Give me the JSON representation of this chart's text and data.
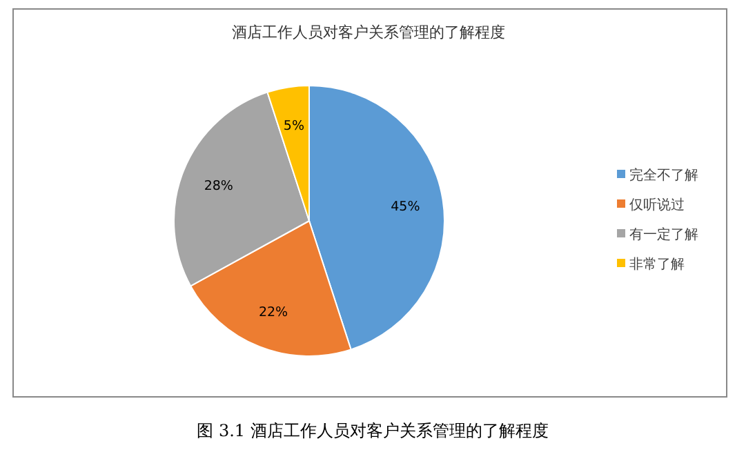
{
  "chart_data": {
    "type": "pie",
    "title": "酒店工作人员对客户关系管理的了解程度",
    "categories": [
      "完全不了解",
      "仅听说过",
      "有一定了解",
      "非常了解"
    ],
    "values": [
      45,
      22,
      28,
      5
    ],
    "value_labels": [
      "45%",
      "22%",
      "28%",
      "5%"
    ],
    "colors": [
      "#5b9bd5",
      "#ed7d31",
      "#a5a5a5",
      "#ffc000"
    ],
    "legend": "right",
    "annotations": [
      "图 3.1 酒店工作人员对客户关系管理的了解程度"
    ]
  }
}
